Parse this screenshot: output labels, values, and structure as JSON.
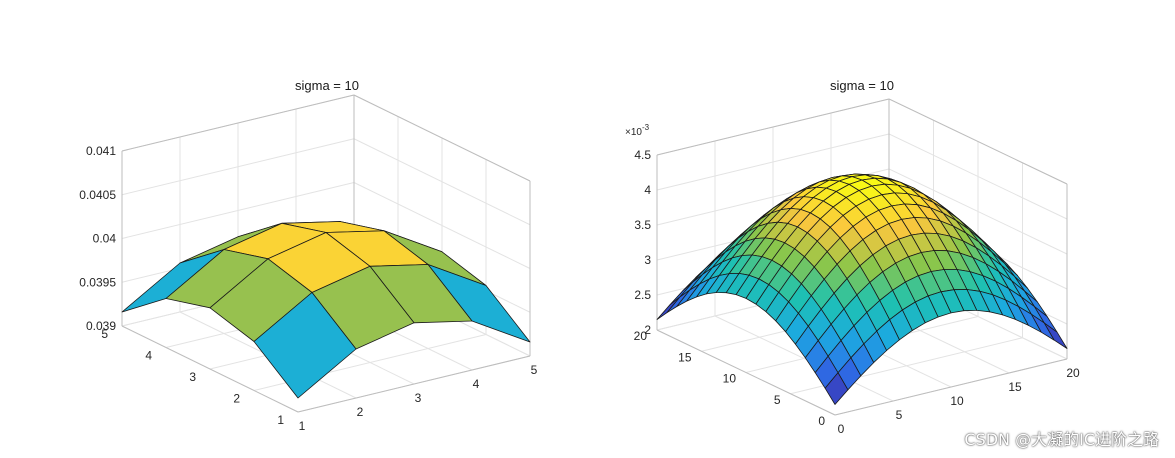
{
  "chart_data": [
    {
      "type": "surface",
      "title": "sigma = 10",
      "x": [
        1,
        2,
        3,
        4,
        5
      ],
      "y": [
        1,
        2,
        3,
        4,
        5
      ],
      "x_ticks": [
        "1",
        "2",
        "3",
        "4",
        "5"
      ],
      "y_ticks": [
        "1",
        "2",
        "3",
        "4",
        "5"
      ],
      "z_ticks": [
        "0.039",
        "0.0395",
        "0.04",
        "0.0405",
        "0.041"
      ],
      "zlim": [
        0.039,
        0.041
      ],
      "z": [
        [
          0.03916,
          0.03956,
          0.0397,
          0.03956,
          0.03916
        ],
        [
          0.03956,
          0.03996,
          0.0401,
          0.03996,
          0.03956
        ],
        [
          0.0397,
          0.0401,
          0.04024,
          0.0401,
          0.0397
        ],
        [
          0.03956,
          0.03996,
          0.0401,
          0.03996,
          0.03956
        ],
        [
          0.03916,
          0.03956,
          0.0397,
          0.03956,
          0.03916
        ]
      ],
      "colormap": [
        "#3e26a8",
        "#2e6ee8",
        "#1caae0",
        "#1ec2b0",
        "#c6c02a",
        "#fac73e",
        "#f9fb15"
      ],
      "grid": true
    },
    {
      "type": "surface",
      "title": "sigma = 10",
      "x_range": [
        0,
        20
      ],
      "y_range": [
        0,
        20
      ],
      "x_ticks": [
        "0",
        "5",
        "10",
        "15",
        "20"
      ],
      "y_ticks": [
        "0",
        "5",
        "10",
        "15",
        "20"
      ],
      "z_ticks": [
        "2",
        "2.5",
        "3",
        "3.5",
        "4",
        "4.5"
      ],
      "z_exponent": "×10",
      "z_exponent_power": "-3",
      "zlim": [
        2.0,
        4.5
      ],
      "grid_n": 19,
      "z_peak": 4.35,
      "z_corner": 2.15,
      "colormap": [
        "#3e26a8",
        "#2e6ee8",
        "#1caae0",
        "#1ec2b0",
        "#8cc64a",
        "#fac73e",
        "#f9fb15"
      ],
      "grid": true
    }
  ],
  "watermark": "CSDN @大凝的IC进阶之路"
}
